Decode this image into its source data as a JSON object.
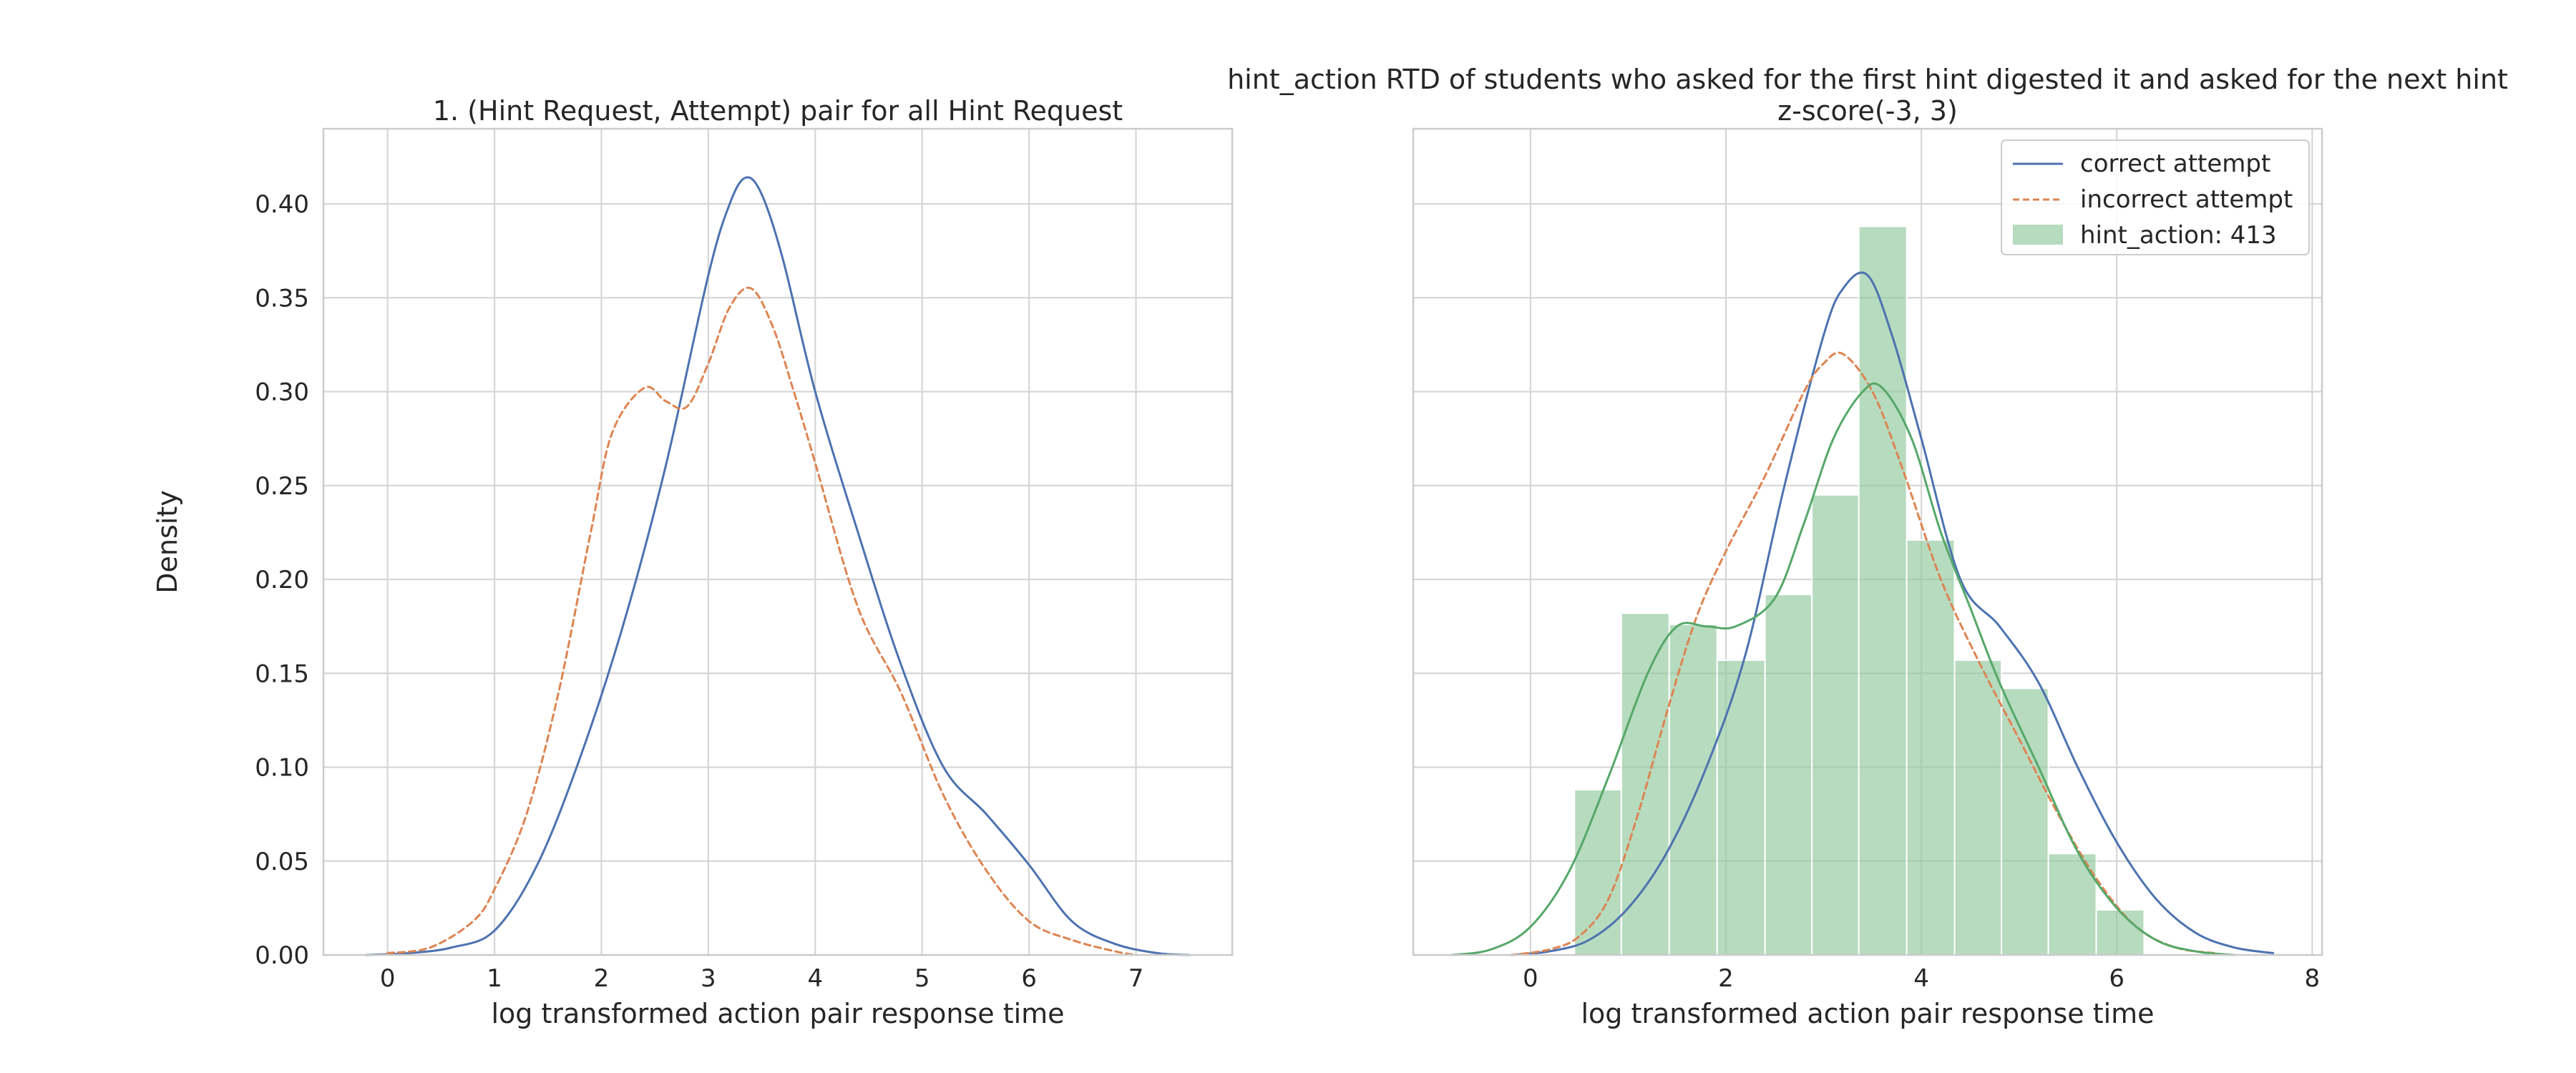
{
  "chart_data": [
    {
      "type": "line",
      "title": "1. (Hint Request, Attempt) pair for all Hint Request",
      "xlabel": "log transformed action pair response time",
      "ylabel": "Density",
      "xlim": [
        -0.6,
        7.9
      ],
      "ylim": [
        0,
        0.44
      ],
      "grid": true,
      "xticks": [
        0,
        1,
        2,
        3,
        4,
        5,
        6,
        7
      ],
      "xtick_labels": [
        "0",
        "1",
        "2",
        "3",
        "4",
        "5",
        "6",
        "7"
      ],
      "yticks": [
        0,
        0.05,
        0.1,
        0.15,
        0.2,
        0.25,
        0.3,
        0.35,
        0.4
      ],
      "ytick_labels": [
        "0.00",
        "0.05",
        "0.10",
        "0.15",
        "0.20",
        "0.25",
        "0.30",
        "0.35",
        "0.40"
      ],
      "series": [
        {
          "color": "#4c72b0",
          "style": "solid",
          "x": [
            -0.2,
            0.2,
            0.6,
            1.0,
            1.4,
            1.8,
            2.2,
            2.6,
            3.0,
            3.2,
            3.35,
            3.5,
            3.7,
            4.0,
            4.4,
            4.8,
            5.2,
            5.6,
            6.0,
            6.4,
            6.8,
            7.2,
            7.5
          ],
          "y": [
            0.0,
            0.001,
            0.004,
            0.013,
            0.048,
            0.105,
            0.175,
            0.26,
            0.362,
            0.4,
            0.414,
            0.405,
            0.37,
            0.3,
            0.225,
            0.155,
            0.1,
            0.075,
            0.048,
            0.018,
            0.006,
            0.001,
            0.0
          ]
        },
        {
          "color": "#dd8452",
          "style": "dashed",
          "x": [
            0.0,
            0.4,
            0.8,
            1.0,
            1.3,
            1.6,
            1.9,
            2.1,
            2.4,
            2.6,
            2.8,
            3.0,
            3.2,
            3.4,
            3.6,
            3.8,
            4.0,
            4.4,
            4.8,
            5.2,
            5.6,
            6.0,
            6.4,
            6.8,
            7.0
          ],
          "y": [
            0.001,
            0.004,
            0.018,
            0.035,
            0.075,
            0.14,
            0.225,
            0.278,
            0.302,
            0.295,
            0.292,
            0.315,
            0.345,
            0.355,
            0.335,
            0.3,
            0.262,
            0.185,
            0.14,
            0.085,
            0.045,
            0.018,
            0.008,
            0.002,
            0.0
          ]
        }
      ]
    },
    {
      "type": "bar",
      "title": "hint_action RTD of students who asked for the first hint digested it and asked for the next hint",
      "subtitle": "z-score(-3, 3)",
      "xlabel": "log transformed action pair response time",
      "ylabel": "",
      "xlim": [
        -1.2,
        8.1
      ],
      "ylim": [
        0,
        0.44
      ],
      "grid": true,
      "legend_position": "top-right",
      "xticks": [
        0,
        2,
        4,
        6,
        8
      ],
      "xtick_labels": [
        "0",
        "2",
        "4",
        "6",
        "8"
      ],
      "yticks": [
        0,
        0.05,
        0.1,
        0.15,
        0.2,
        0.25,
        0.3,
        0.35,
        0.4
      ],
      "histogram": {
        "name": "hint_action: 413",
        "color": "#8fc79c",
        "bin_edges": [
          0.45,
          0.93,
          1.42,
          1.91,
          2.4,
          2.88,
          3.36,
          3.85,
          4.34,
          4.82,
          5.3,
          5.79,
          6.28
        ],
        "heights": [
          0.088,
          0.182,
          0.176,
          0.157,
          0.192,
          0.245,
          0.388,
          0.221,
          0.157,
          0.142,
          0.054,
          0.024
        ]
      },
      "series": [
        {
          "name": "correct attempt",
          "color": "#4c72b0",
          "style": "solid",
          "x": [
            -0.2,
            0.2,
            0.6,
            1.0,
            1.4,
            1.8,
            2.2,
            2.6,
            3.0,
            3.2,
            3.45,
            3.7,
            4.0,
            4.4,
            4.8,
            5.2,
            5.6,
            6.0,
            6.4,
            6.8,
            7.2,
            7.6
          ],
          "y": [
            0.0,
            0.002,
            0.008,
            0.025,
            0.055,
            0.1,
            0.16,
            0.25,
            0.33,
            0.355,
            0.362,
            0.33,
            0.275,
            0.2,
            0.175,
            0.145,
            0.1,
            0.06,
            0.03,
            0.012,
            0.004,
            0.001
          ]
        },
        {
          "name": "incorrect attempt",
          "color": "#dd8452",
          "style": "dashed",
          "x": [
            -0.2,
            0.2,
            0.5,
            0.8,
            1.1,
            1.4,
            1.7,
            2.0,
            2.4,
            2.8,
            3.0,
            3.2,
            3.5,
            3.8,
            4.2,
            4.6,
            5.0,
            5.4,
            5.8,
            6.2,
            6.6,
            7.0
          ],
          "y": [
            0.0,
            0.003,
            0.01,
            0.03,
            0.075,
            0.13,
            0.18,
            0.215,
            0.255,
            0.3,
            0.315,
            0.32,
            0.3,
            0.26,
            0.2,
            0.155,
            0.115,
            0.075,
            0.04,
            0.015,
            0.004,
            0.001
          ]
        },
        {
          "name": "",
          "color": "#55a868",
          "style": "solid",
          "x": [
            -0.8,
            -0.4,
            0.0,
            0.4,
            0.8,
            1.2,
            1.5,
            1.8,
            2.1,
            2.5,
            2.8,
            3.1,
            3.4,
            3.6,
            3.9,
            4.2,
            4.5,
            4.8,
            5.2,
            5.6,
            6.0,
            6.4,
            6.8,
            7.2
          ],
          "y": [
            0.0,
            0.003,
            0.015,
            0.045,
            0.095,
            0.15,
            0.175,
            0.175,
            0.175,
            0.19,
            0.23,
            0.275,
            0.3,
            0.302,
            0.275,
            0.225,
            0.185,
            0.145,
            0.1,
            0.055,
            0.025,
            0.008,
            0.002,
            0.0
          ]
        }
      ]
    }
  ]
}
